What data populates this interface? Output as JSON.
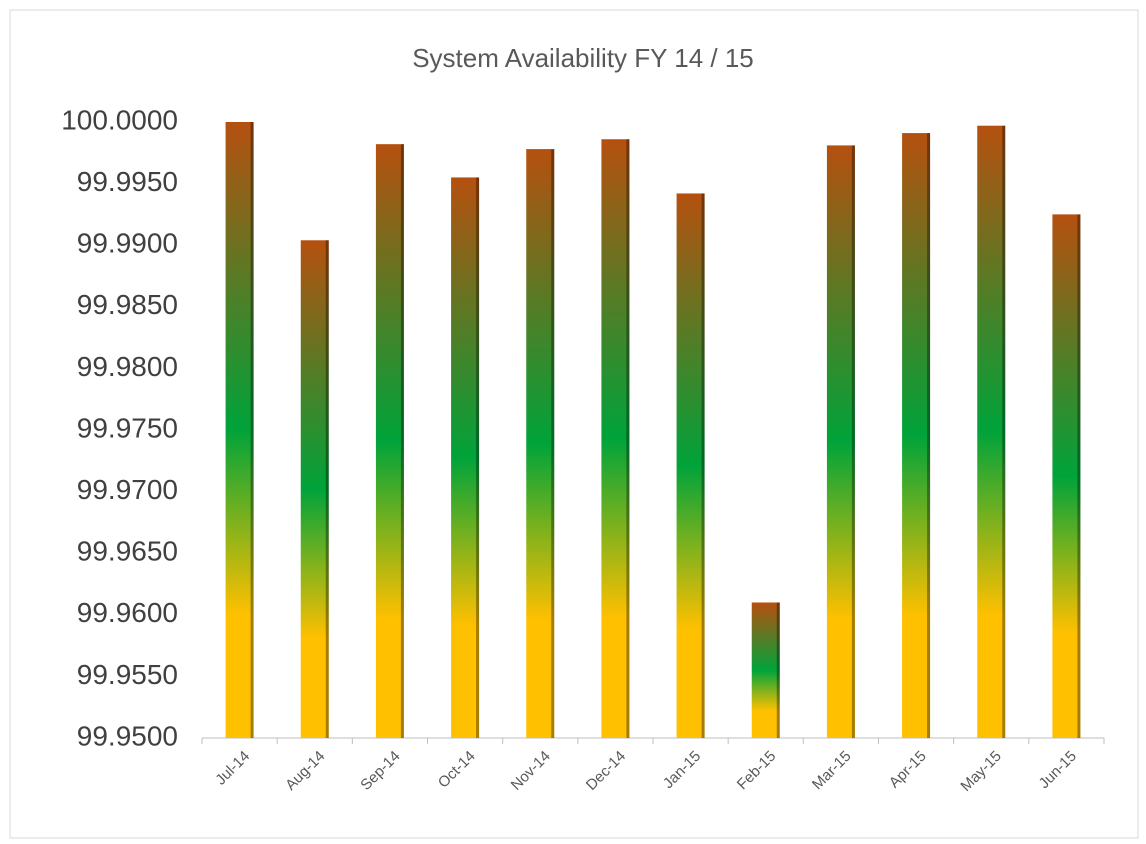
{
  "chart_data": {
    "type": "bar",
    "title": "System Availability FY 14 / 15",
    "categories": [
      "Jul-14",
      "Aug-14",
      "Sep-14",
      "Oct-14",
      "Nov-14",
      "Dec-14",
      "Jan-15",
      "Feb-15",
      "Mar-15",
      "Apr-15",
      "May-15",
      "Jun-15"
    ],
    "values": [
      100.0,
      99.9904,
      99.9982,
      99.9955,
      99.9978,
      99.9986,
      99.9942,
      99.961,
      99.9981,
      99.9991,
      99.9997,
      99.9925
    ],
    "gradient": [
      "#ffc000",
      "#00a33a",
      "#b5500f"
    ],
    "ylim": [
      99.95,
      100.0
    ],
    "yticks": [
      {
        "value": 99.95,
        "label": "99.9500"
      },
      {
        "value": 99.955,
        "label": "99.9550"
      },
      {
        "value": 99.96,
        "label": "99.9600"
      },
      {
        "value": 99.965,
        "label": "99.9650"
      },
      {
        "value": 99.97,
        "label": "99.9700"
      },
      {
        "value": 99.975,
        "label": "99.9750"
      },
      {
        "value": 99.98,
        "label": "99.9800"
      },
      {
        "value": 99.985,
        "label": "99.9850"
      },
      {
        "value": 99.99,
        "label": "99.9900"
      },
      {
        "value": 99.995,
        "label": "99.9950"
      },
      {
        "value": 100.0,
        "label": "100.0000"
      }
    ],
    "grid": false
  }
}
